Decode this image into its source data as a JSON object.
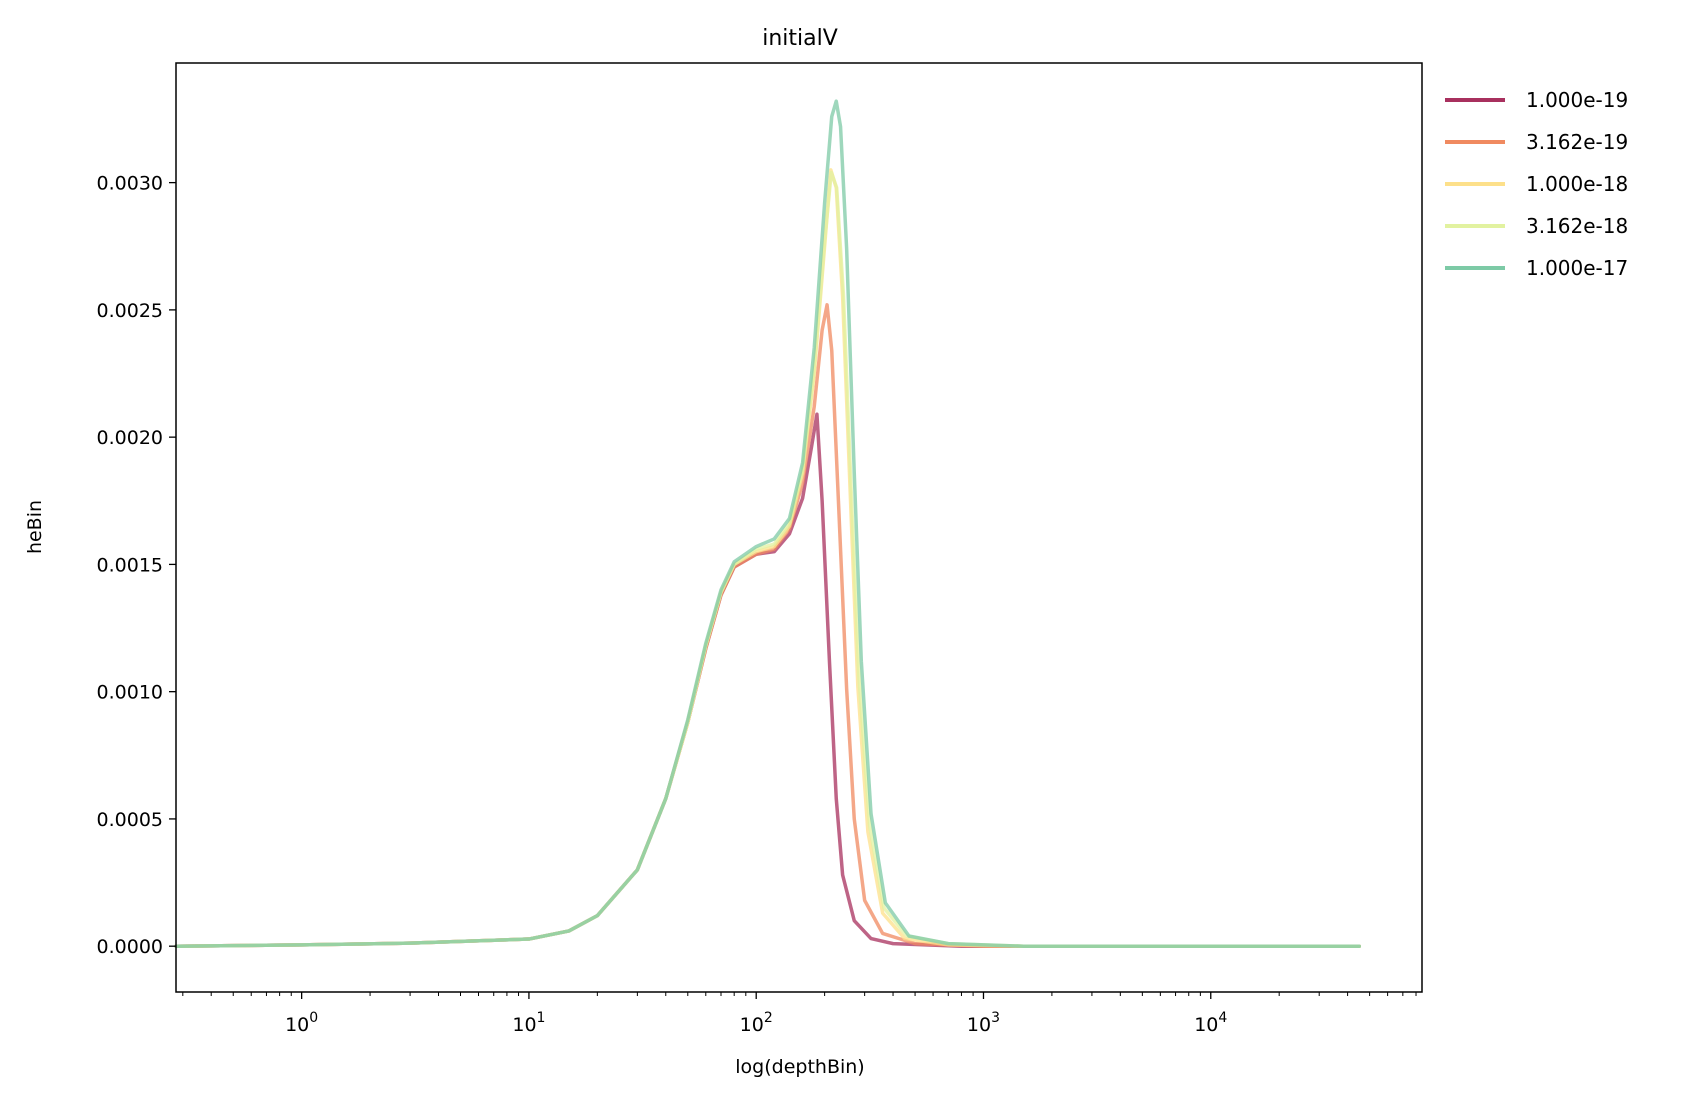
{
  "chart_data": {
    "type": "line",
    "title": "initialV",
    "xlabel": "log(depthBin)",
    "ylabel": "heBin",
    "xscale": "log",
    "xlim": [
      0.28,
      85000
    ],
    "ylim": [
      -0.00018,
      0.00347
    ],
    "x_ticks": [
      {
        "value": 1,
        "base": "10",
        "exp": "0"
      },
      {
        "value": 10,
        "base": "10",
        "exp": "1"
      },
      {
        "value": 100,
        "base": "10",
        "exp": "2"
      },
      {
        "value": 1000,
        "base": "10",
        "exp": "3"
      },
      {
        "value": 10000,
        "base": "10",
        "exp": "4"
      }
    ],
    "y_ticks": [
      {
        "value": 0.0,
        "label": "0.0000"
      },
      {
        "value": 0.0005,
        "label": "0.0005"
      },
      {
        "value": 0.001,
        "label": "0.0010"
      },
      {
        "value": 0.0015,
        "label": "0.0015"
      },
      {
        "value": 0.002,
        "label": "0.0020"
      },
      {
        "value": 0.0025,
        "label": "0.0025"
      },
      {
        "value": 0.003,
        "label": "0.0030"
      }
    ],
    "grid": false,
    "legend_position": "outside-right-top",
    "series": [
      {
        "name": "1.000e-19",
        "color": "#a8305e",
        "points": [
          [
            0.28,
            0.0
          ],
          [
            1,
            5e-06
          ],
          [
            3,
            1.2e-05
          ],
          [
            10,
            2.8e-05
          ],
          [
            15,
            6e-05
          ],
          [
            20,
            0.00012
          ],
          [
            30,
            0.0003
          ],
          [
            40,
            0.00058
          ],
          [
            50,
            0.00088
          ],
          [
            60,
            0.00117
          ],
          [
            70,
            0.00138
          ],
          [
            80,
            0.00149
          ],
          [
            100,
            0.00154
          ],
          [
            120,
            0.00155
          ],
          [
            140,
            0.00162
          ],
          [
            160,
            0.00176
          ],
          [
            175,
            0.00196
          ],
          [
            185,
            0.00209
          ],
          [
            195,
            0.00175
          ],
          [
            210,
            0.00112
          ],
          [
            225,
            0.00058
          ],
          [
            240,
            0.00028
          ],
          [
            270,
            0.0001
          ],
          [
            320,
            3e-05
          ],
          [
            400,
            1e-05
          ],
          [
            800,
            0.0
          ],
          [
            10000,
            0.0
          ],
          [
            45000,
            0.0
          ]
        ]
      },
      {
        "name": "3.162e-19",
        "color": "#f08a60",
        "points": [
          [
            0.28,
            0.0
          ],
          [
            1,
            5e-06
          ],
          [
            3,
            1.2e-05
          ],
          [
            10,
            2.8e-05
          ],
          [
            15,
            6e-05
          ],
          [
            20,
            0.00012
          ],
          [
            30,
            0.0003
          ],
          [
            40,
            0.00058
          ],
          [
            50,
            0.00088
          ],
          [
            60,
            0.00117
          ],
          [
            70,
            0.00138
          ],
          [
            80,
            0.00149
          ],
          [
            100,
            0.00154
          ],
          [
            120,
            0.00156
          ],
          [
            140,
            0.00164
          ],
          [
            160,
            0.00182
          ],
          [
            180,
            0.00212
          ],
          [
            195,
            0.00242
          ],
          [
            205,
            0.00252
          ],
          [
            215,
            0.00234
          ],
          [
            230,
            0.00175
          ],
          [
            250,
            0.00101
          ],
          [
            270,
            0.0005
          ],
          [
            300,
            0.00018
          ],
          [
            360,
            5e-05
          ],
          [
            500,
            1e-05
          ],
          [
            1000,
            0.0
          ],
          [
            45000,
            0.0
          ]
        ]
      },
      {
        "name": "1.000e-18",
        "color": "#fde08a",
        "points": [
          [
            0.28,
            0.0
          ],
          [
            1,
            5e-06
          ],
          [
            3,
            1.2e-05
          ],
          [
            10,
            2.8e-05
          ],
          [
            15,
            6e-05
          ],
          [
            20,
            0.00012
          ],
          [
            30,
            0.0003
          ],
          [
            40,
            0.00058
          ],
          [
            50,
            0.00088
          ],
          [
            60,
            0.00118
          ],
          [
            70,
            0.00139
          ],
          [
            80,
            0.0015
          ],
          [
            100,
            0.00155
          ],
          [
            120,
            0.00157
          ],
          [
            140,
            0.00165
          ],
          [
            160,
            0.00186
          ],
          [
            180,
            0.00225
          ],
          [
            200,
            0.00275
          ],
          [
            213,
            0.00305
          ],
          [
            225,
            0.00298
          ],
          [
            240,
            0.00255
          ],
          [
            260,
            0.00175
          ],
          [
            280,
            0.00102
          ],
          [
            310,
            0.00045
          ],
          [
            360,
            0.00013
          ],
          [
            450,
            3e-05
          ],
          [
            700,
            5e-06
          ],
          [
            1500,
            0.0
          ],
          [
            45000,
            0.0
          ]
        ]
      },
      {
        "name": "3.162e-18",
        "color": "#e2f2a0",
        "points": [
          [
            0.28,
            0.0
          ],
          [
            1,
            5e-06
          ],
          [
            3,
            1.2e-05
          ],
          [
            10,
            2.8e-05
          ],
          [
            15,
            6e-05
          ],
          [
            20,
            0.00012
          ],
          [
            30,
            0.0003
          ],
          [
            40,
            0.00058
          ],
          [
            50,
            0.00088
          ],
          [
            60,
            0.00118
          ],
          [
            70,
            0.00139
          ],
          [
            80,
            0.0015
          ],
          [
            100,
            0.00156
          ],
          [
            120,
            0.00158
          ],
          [
            140,
            0.00166
          ],
          [
            160,
            0.00187
          ],
          [
            180,
            0.00227
          ],
          [
            200,
            0.00277
          ],
          [
            214,
            0.00304
          ],
          [
            226,
            0.00298
          ],
          [
            242,
            0.00256
          ],
          [
            262,
            0.00178
          ],
          [
            283,
            0.00106
          ],
          [
            315,
            0.00048
          ],
          [
            365,
            0.00015
          ],
          [
            460,
            4e-05
          ],
          [
            700,
            1e-05
          ],
          [
            1500,
            0.0
          ],
          [
            45000,
            0.0
          ]
        ]
      },
      {
        "name": "1.000e-17",
        "color": "#7dcaa6",
        "points": [
          [
            0.28,
            0.0
          ],
          [
            1,
            5e-06
          ],
          [
            3,
            1.2e-05
          ],
          [
            10,
            2.8e-05
          ],
          [
            15,
            6e-05
          ],
          [
            20,
            0.00012
          ],
          [
            30,
            0.0003
          ],
          [
            40,
            0.00058
          ],
          [
            50,
            0.00089
          ],
          [
            60,
            0.00119
          ],
          [
            70,
            0.0014
          ],
          [
            80,
            0.00151
          ],
          [
            100,
            0.00157
          ],
          [
            120,
            0.0016
          ],
          [
            140,
            0.00168
          ],
          [
            160,
            0.0019
          ],
          [
            180,
            0.00235
          ],
          [
            200,
            0.00292
          ],
          [
            215,
            0.00326
          ],
          [
            225,
            0.00332
          ],
          [
            235,
            0.00322
          ],
          [
            250,
            0.00274
          ],
          [
            270,
            0.00186
          ],
          [
            290,
            0.00112
          ],
          [
            320,
            0.00052
          ],
          [
            370,
            0.00017
          ],
          [
            470,
            4e-05
          ],
          [
            700,
            1e-05
          ],
          [
            1500,
            0.0
          ],
          [
            45000,
            0.0
          ]
        ]
      }
    ]
  }
}
